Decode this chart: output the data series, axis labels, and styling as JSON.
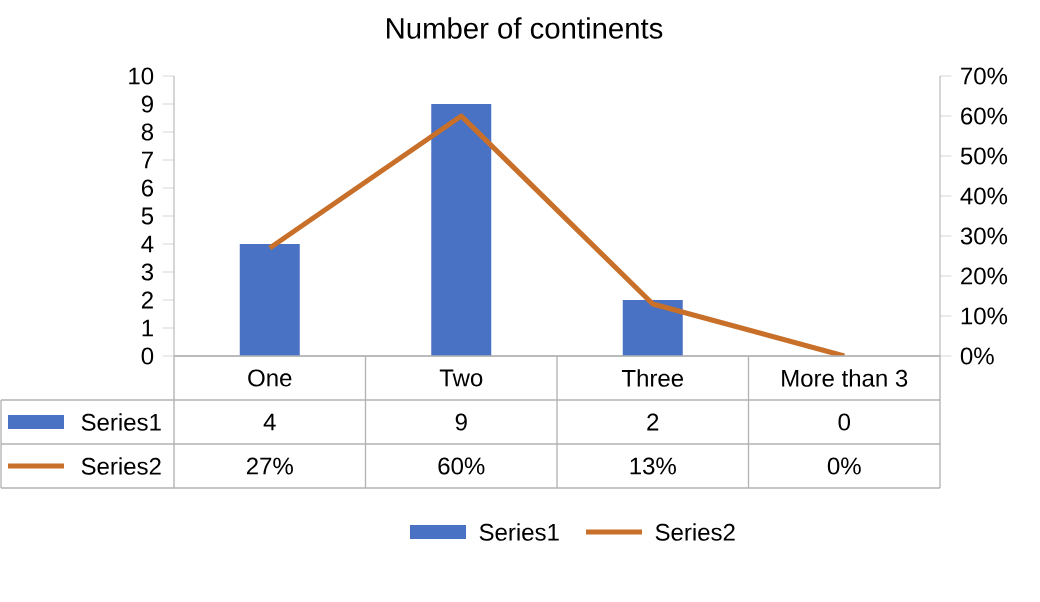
{
  "chart_data": {
    "type": "bar",
    "title": "Number of continents",
    "categories": [
      "One",
      "Two",
      "Three",
      "More than 3"
    ],
    "series": [
      {
        "name": "Series1",
        "color": "#4a72c4",
        "values": [
          4,
          9,
          2,
          0
        ],
        "value_labels": [
          "4",
          "9",
          "2",
          "0"
        ]
      },
      {
        "name": "Series2",
        "type": "line",
        "axis": "y2",
        "color": "#c8702a",
        "values": [
          27,
          60,
          13,
          0
        ],
        "value_labels": [
          "27%",
          "60%",
          "13%",
          "0%"
        ]
      }
    ],
    "ylim": [
      0,
      10
    ],
    "yticks": [
      0,
      1,
      2,
      3,
      4,
      5,
      6,
      7,
      8,
      9,
      10
    ],
    "y2lim": [
      0,
      70
    ],
    "y2ticks": [
      {
        "value": 0,
        "label": "0%"
      },
      {
        "value": 10,
        "label": "10%"
      },
      {
        "value": 20,
        "label": "20%"
      },
      {
        "value": 30,
        "label": "30%"
      },
      {
        "value": 40,
        "label": "40%"
      },
      {
        "value": 50,
        "label": "50%"
      },
      {
        "value": 60,
        "label": "60%"
      },
      {
        "value": 70,
        "label": "70%"
      }
    ],
    "legend": "bottom"
  }
}
